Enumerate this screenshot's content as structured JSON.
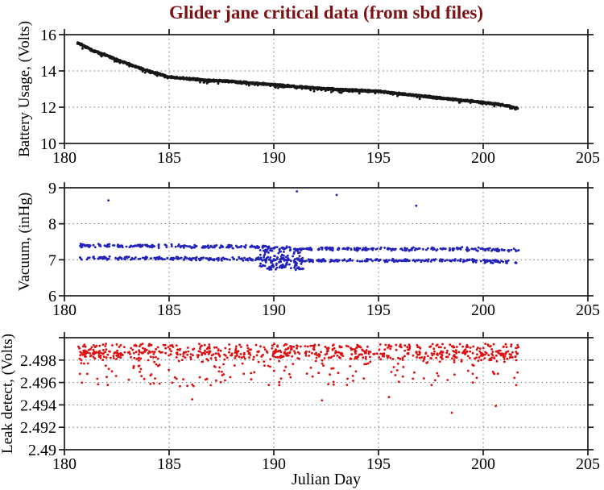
{
  "title": "Glider jane critical data (from sbd files)",
  "title_color": "#7e1114",
  "xlabel": "Julian Day",
  "axis_color": "#1a1a1a",
  "grid_color": "#6a6a6a",
  "chart_data": [
    {
      "type": "scatter",
      "series_name": "battery-usage",
      "ylabel": "Battery Usage, (Volts)",
      "color": "#161616",
      "xlim": [
        180,
        205
      ],
      "ylim": [
        10,
        16
      ],
      "xticks": [
        {
          "v": 180,
          "label": "180",
          "grid": false
        },
        {
          "v": 185,
          "label": "185",
          "grid": true
        },
        {
          "v": 190,
          "label": "190",
          "grid": true
        },
        {
          "v": 195,
          "label": "195",
          "grid": true
        },
        {
          "v": 200,
          "label": "200",
          "grid": true
        },
        {
          "v": 205,
          "label": "205",
          "grid": false
        }
      ],
      "yticks": [
        {
          "v": 10,
          "label": "10",
          "grid": false
        },
        {
          "v": 12,
          "label": "12",
          "grid": true
        },
        {
          "v": 14,
          "label": "14",
          "grid": true
        },
        {
          "v": 16,
          "label": "16",
          "grid": false
        }
      ],
      "gen": {
        "kind": "trend",
        "seed": 7,
        "n": 2600,
        "x_range": [
          180.62,
          201.65
        ],
        "jitter": 0.07,
        "dip_prob": 0.05,
        "dip_depth": 0.14,
        "trend": [
          [
            180.62,
            15.56
          ],
          [
            180.96,
            15.36
          ],
          [
            181.3,
            15.15
          ],
          [
            181.9,
            14.9
          ],
          [
            182.5,
            14.62
          ],
          [
            183.2,
            14.32
          ],
          [
            184.0,
            14.0
          ],
          [
            185.0,
            13.67
          ],
          [
            186.0,
            13.56
          ],
          [
            187.0,
            13.47
          ],
          [
            188.0,
            13.42
          ],
          [
            189.0,
            13.33
          ],
          [
            190.0,
            13.24
          ],
          [
            191.0,
            13.14
          ],
          [
            192.0,
            13.05
          ],
          [
            193.0,
            12.98
          ],
          [
            194.0,
            12.93
          ],
          [
            195.0,
            12.88
          ],
          [
            196.0,
            12.75
          ],
          [
            197.0,
            12.62
          ],
          [
            198.0,
            12.5
          ],
          [
            199.0,
            12.38
          ],
          [
            200.0,
            12.27
          ],
          [
            200.8,
            12.15
          ],
          [
            201.3,
            12.05
          ],
          [
            201.65,
            11.93
          ]
        ]
      }
    },
    {
      "type": "scatter",
      "series_name": "vacuum",
      "ylabel": "Vacuum, (inHg)",
      "color": "#2222bb",
      "xlim": [
        180,
        205
      ],
      "ylim": [
        6,
        9
      ],
      "xticks": [
        {
          "v": 180,
          "label": "180",
          "grid": false
        },
        {
          "v": 185,
          "label": "185",
          "grid": true
        },
        {
          "v": 190,
          "label": "190",
          "grid": true
        },
        {
          "v": 195,
          "label": "195",
          "grid": true
        },
        {
          "v": 200,
          "label": "200",
          "grid": true
        },
        {
          "v": 205,
          "label": "205",
          "grid": false
        }
      ],
      "yticks": [
        {
          "v": 6,
          "label": "6",
          "grid": false
        },
        {
          "v": 7,
          "label": "7",
          "grid": true
        },
        {
          "v": 8,
          "label": "8",
          "grid": true
        },
        {
          "v": 9,
          "label": "9",
          "grid": false
        }
      ],
      "gen": {
        "kind": "bands",
        "seed": 11,
        "bands": [
          {
            "n": 430,
            "x_range": [
              180.7,
              201.7
            ],
            "spread": 0.055,
            "trend": [
              [
                180.7,
                7.4
              ],
              [
                189.3,
                7.36
              ],
              [
                191.3,
                7.3
              ],
              [
                199.0,
                7.3
              ],
              [
                201.7,
                7.27
              ]
            ]
          },
          {
            "n": 430,
            "x_range": [
              180.7,
              201.7
            ],
            "spread": 0.055,
            "trend": [
              [
                180.7,
                7.05
              ],
              [
                189.3,
                7.02
              ],
              [
                191.3,
                6.98
              ],
              [
                199.0,
                6.98
              ],
              [
                201.7,
                6.93
              ]
            ]
          }
        ],
        "clusters": [
          {
            "n": 130,
            "x": [
              189.3,
              191.4
            ],
            "y": [
              6.72,
              7.3
            ]
          }
        ],
        "outliers": [
          [
            182.1,
            8.65
          ],
          [
            191.1,
            8.9
          ],
          [
            193.0,
            8.8
          ],
          [
            196.8,
            8.5
          ]
        ]
      }
    },
    {
      "type": "scatter",
      "series_name": "leak-detect",
      "ylabel": "Leak detect, (Volts)",
      "color": "#dd1111",
      "xlim": [
        180,
        205
      ],
      "ylim": [
        2.49,
        2.5
      ],
      "xticks": [
        {
          "v": 180,
          "label": "180",
          "grid": false
        },
        {
          "v": 185,
          "label": "185",
          "grid": true
        },
        {
          "v": 190,
          "label": "190",
          "grid": true
        },
        {
          "v": 195,
          "label": "195",
          "grid": true
        },
        {
          "v": 200,
          "label": "200",
          "grid": true
        },
        {
          "v": 205,
          "label": "205",
          "grid": false
        }
      ],
      "yticks": [
        {
          "v": 2.49,
          "label": "2.49",
          "grid": false
        },
        {
          "v": 2.492,
          "label": "2.492",
          "grid": true
        },
        {
          "v": 2.494,
          "label": "2.494",
          "grid": true
        },
        {
          "v": 2.496,
          "label": "2.496",
          "grid": true
        },
        {
          "v": 2.498,
          "label": "2.498",
          "grid": true
        },
        {
          "v": 2.5,
          "label": "",
          "grid": false
        }
      ],
      "gen": {
        "kind": "cloud",
        "seed": 23,
        "n": 850,
        "x_range": [
          180.65,
          201.7
        ],
        "top": 2.4994,
        "band": 0.0013,
        "band_frac": 0.62,
        "tail_base": 0.0007,
        "tail_scale": 0.0031,
        "tail_pow": 2.2,
        "y_max": 2.49955,
        "outliers": [
          [
            186.1,
            2.4945
          ],
          [
            192.3,
            2.4944
          ],
          [
            195.5,
            2.4947
          ],
          [
            198.5,
            2.4933
          ],
          [
            200.6,
            2.4939
          ]
        ]
      }
    }
  ]
}
